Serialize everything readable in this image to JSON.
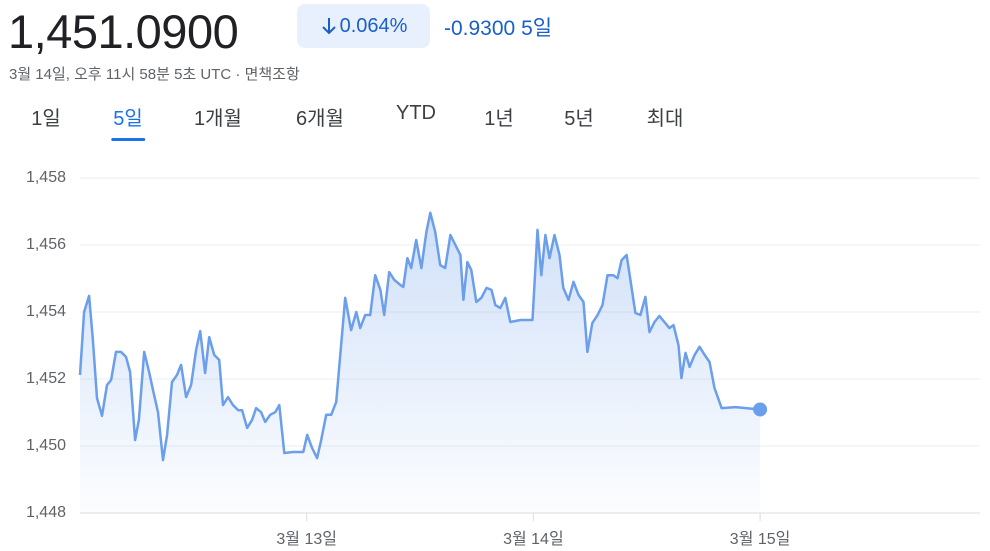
{
  "header": {
    "price": "1,451.0900",
    "change_percent": "0.064%",
    "change": "-0.9300",
    "period": "5일",
    "timestamp": "3월 14일, 오후 11시 58분 5초 UTC · ",
    "disclaimer": "면책조항"
  },
  "tabs": {
    "items": [
      "1일",
      "5일",
      "1개월",
      "6개월",
      "YTD",
      "1년",
      "5년",
      "최대"
    ],
    "selected": 1
  },
  "chart_data": {
    "type": "line",
    "x": [
      12.0,
      12.018,
      12.04,
      12.057,
      12.075,
      12.097,
      12.119,
      12.137,
      12.159,
      12.181,
      12.203,
      12.221,
      12.243,
      12.26,
      12.283,
      12.305,
      12.322,
      12.344,
      12.366,
      12.384,
      12.406,
      12.428,
      12.446,
      12.468,
      12.49,
      12.512,
      12.53,
      12.552,
      12.57,
      12.592,
      12.614,
      12.631,
      12.653,
      12.675,
      12.698,
      12.715,
      12.737,
      12.759,
      12.777,
      12.799,
      12.817,
      12.839,
      12.861,
      12.879,
      12.901,
      12.94,
      12.985,
      13.002,
      13.024,
      13.046,
      13.064,
      13.086,
      13.108,
      13.13,
      13.17,
      13.196,
      13.219,
      13.236,
      13.258,
      13.28,
      13.302,
      13.325,
      13.342,
      13.364,
      13.386,
      13.413,
      13.426,
      13.444,
      13.461,
      13.483,
      13.506,
      13.528,
      13.545,
      13.567,
      13.589,
      13.611,
      13.634,
      13.656,
      13.678,
      13.691,
      13.709,
      13.726,
      13.748,
      13.77,
      13.793,
      13.815,
      13.832,
      13.854,
      13.876,
      13.898,
      13.943,
      13.996,
      14.018,
      14.035,
      14.053,
      14.071,
      14.093,
      14.115,
      14.132,
      14.155,
      14.177,
      14.199,
      14.221,
      14.238,
      14.26,
      14.283,
      14.305,
      14.327,
      14.353,
      14.371,
      14.389,
      14.411,
      14.428,
      14.45,
      14.472,
      14.494,
      14.512,
      14.534,
      14.556,
      14.578,
      14.6,
      14.618,
      14.64,
      14.653,
      14.671,
      14.689,
      14.711,
      14.733,
      14.755,
      14.777,
      14.799,
      14.83,
      14.892,
      14.936,
      15.0
    ],
    "series": [
      {
        "color": "#6b9eeb",
        "values": [
          1452.12,
          1454.0,
          1454.48,
          1453.16,
          1451.43,
          1450.9,
          1451.82,
          1451.97,
          1452.81,
          1452.81,
          1452.66,
          1452.21,
          1450.18,
          1450.78,
          1452.81,
          1452.21,
          1451.67,
          1451.01,
          1449.58,
          1450.33,
          1451.91,
          1452.12,
          1452.42,
          1451.46,
          1451.82,
          1452.87,
          1453.43,
          1452.18,
          1453.25,
          1452.72,
          1452.57,
          1451.22,
          1451.46,
          1451.22,
          1451.07,
          1451.07,
          1450.54,
          1450.78,
          1451.13,
          1451.01,
          1450.72,
          1450.93,
          1451.01,
          1451.22,
          1449.79,
          1449.82,
          1449.82,
          1450.33,
          1449.94,
          1449.64,
          1450.18,
          1450.93,
          1450.93,
          1451.31,
          1454.42,
          1453.46,
          1454.0,
          1453.52,
          1453.91,
          1453.91,
          1455.1,
          1454.66,
          1453.91,
          1455.19,
          1454.96,
          1454.81,
          1454.75,
          1455.61,
          1455.31,
          1456.15,
          1455.31,
          1456.39,
          1456.96,
          1456.39,
          1455.4,
          1455.31,
          1456.3,
          1456.0,
          1455.7,
          1454.36,
          1455.49,
          1455.25,
          1454.3,
          1454.42,
          1454.72,
          1454.66,
          1454.21,
          1454.12,
          1454.42,
          1453.7,
          1453.76,
          1453.76,
          1456.45,
          1455.1,
          1456.3,
          1455.61,
          1456.3,
          1455.7,
          1454.72,
          1454.36,
          1454.9,
          1454.51,
          1454.3,
          1452.81,
          1453.67,
          1453.91,
          1454.21,
          1455.1,
          1455.1,
          1455.01,
          1455.55,
          1455.7,
          1454.96,
          1453.97,
          1453.91,
          1454.45,
          1453.4,
          1453.7,
          1453.88,
          1453.7,
          1453.52,
          1453.61,
          1453.01,
          1452.03,
          1452.78,
          1452.36,
          1452.72,
          1452.96,
          1452.72,
          1452.51,
          1451.73,
          1451.13,
          1451.16,
          1451.13,
          1451.09
        ]
      }
    ],
    "xlim": [
      12,
      15.97
    ],
    "xticks": [
      {
        "value": 13,
        "label": "3월 13일"
      },
      {
        "value": 14,
        "label": "3월 14일"
      },
      {
        "value": 15,
        "label": "3월 15일"
      }
    ],
    "ylim": [
      1448,
      1458
    ],
    "yticks": [
      {
        "value": 1448,
        "label": "1,448"
      },
      {
        "value": 1450,
        "label": "1,450"
      },
      {
        "value": 1452,
        "label": "1,452"
      },
      {
        "value": 1454,
        "label": "1,454"
      },
      {
        "value": 1456,
        "label": "1,456"
      },
      {
        "value": 1458,
        "label": "1,458"
      }
    ],
    "grid": true
  }
}
